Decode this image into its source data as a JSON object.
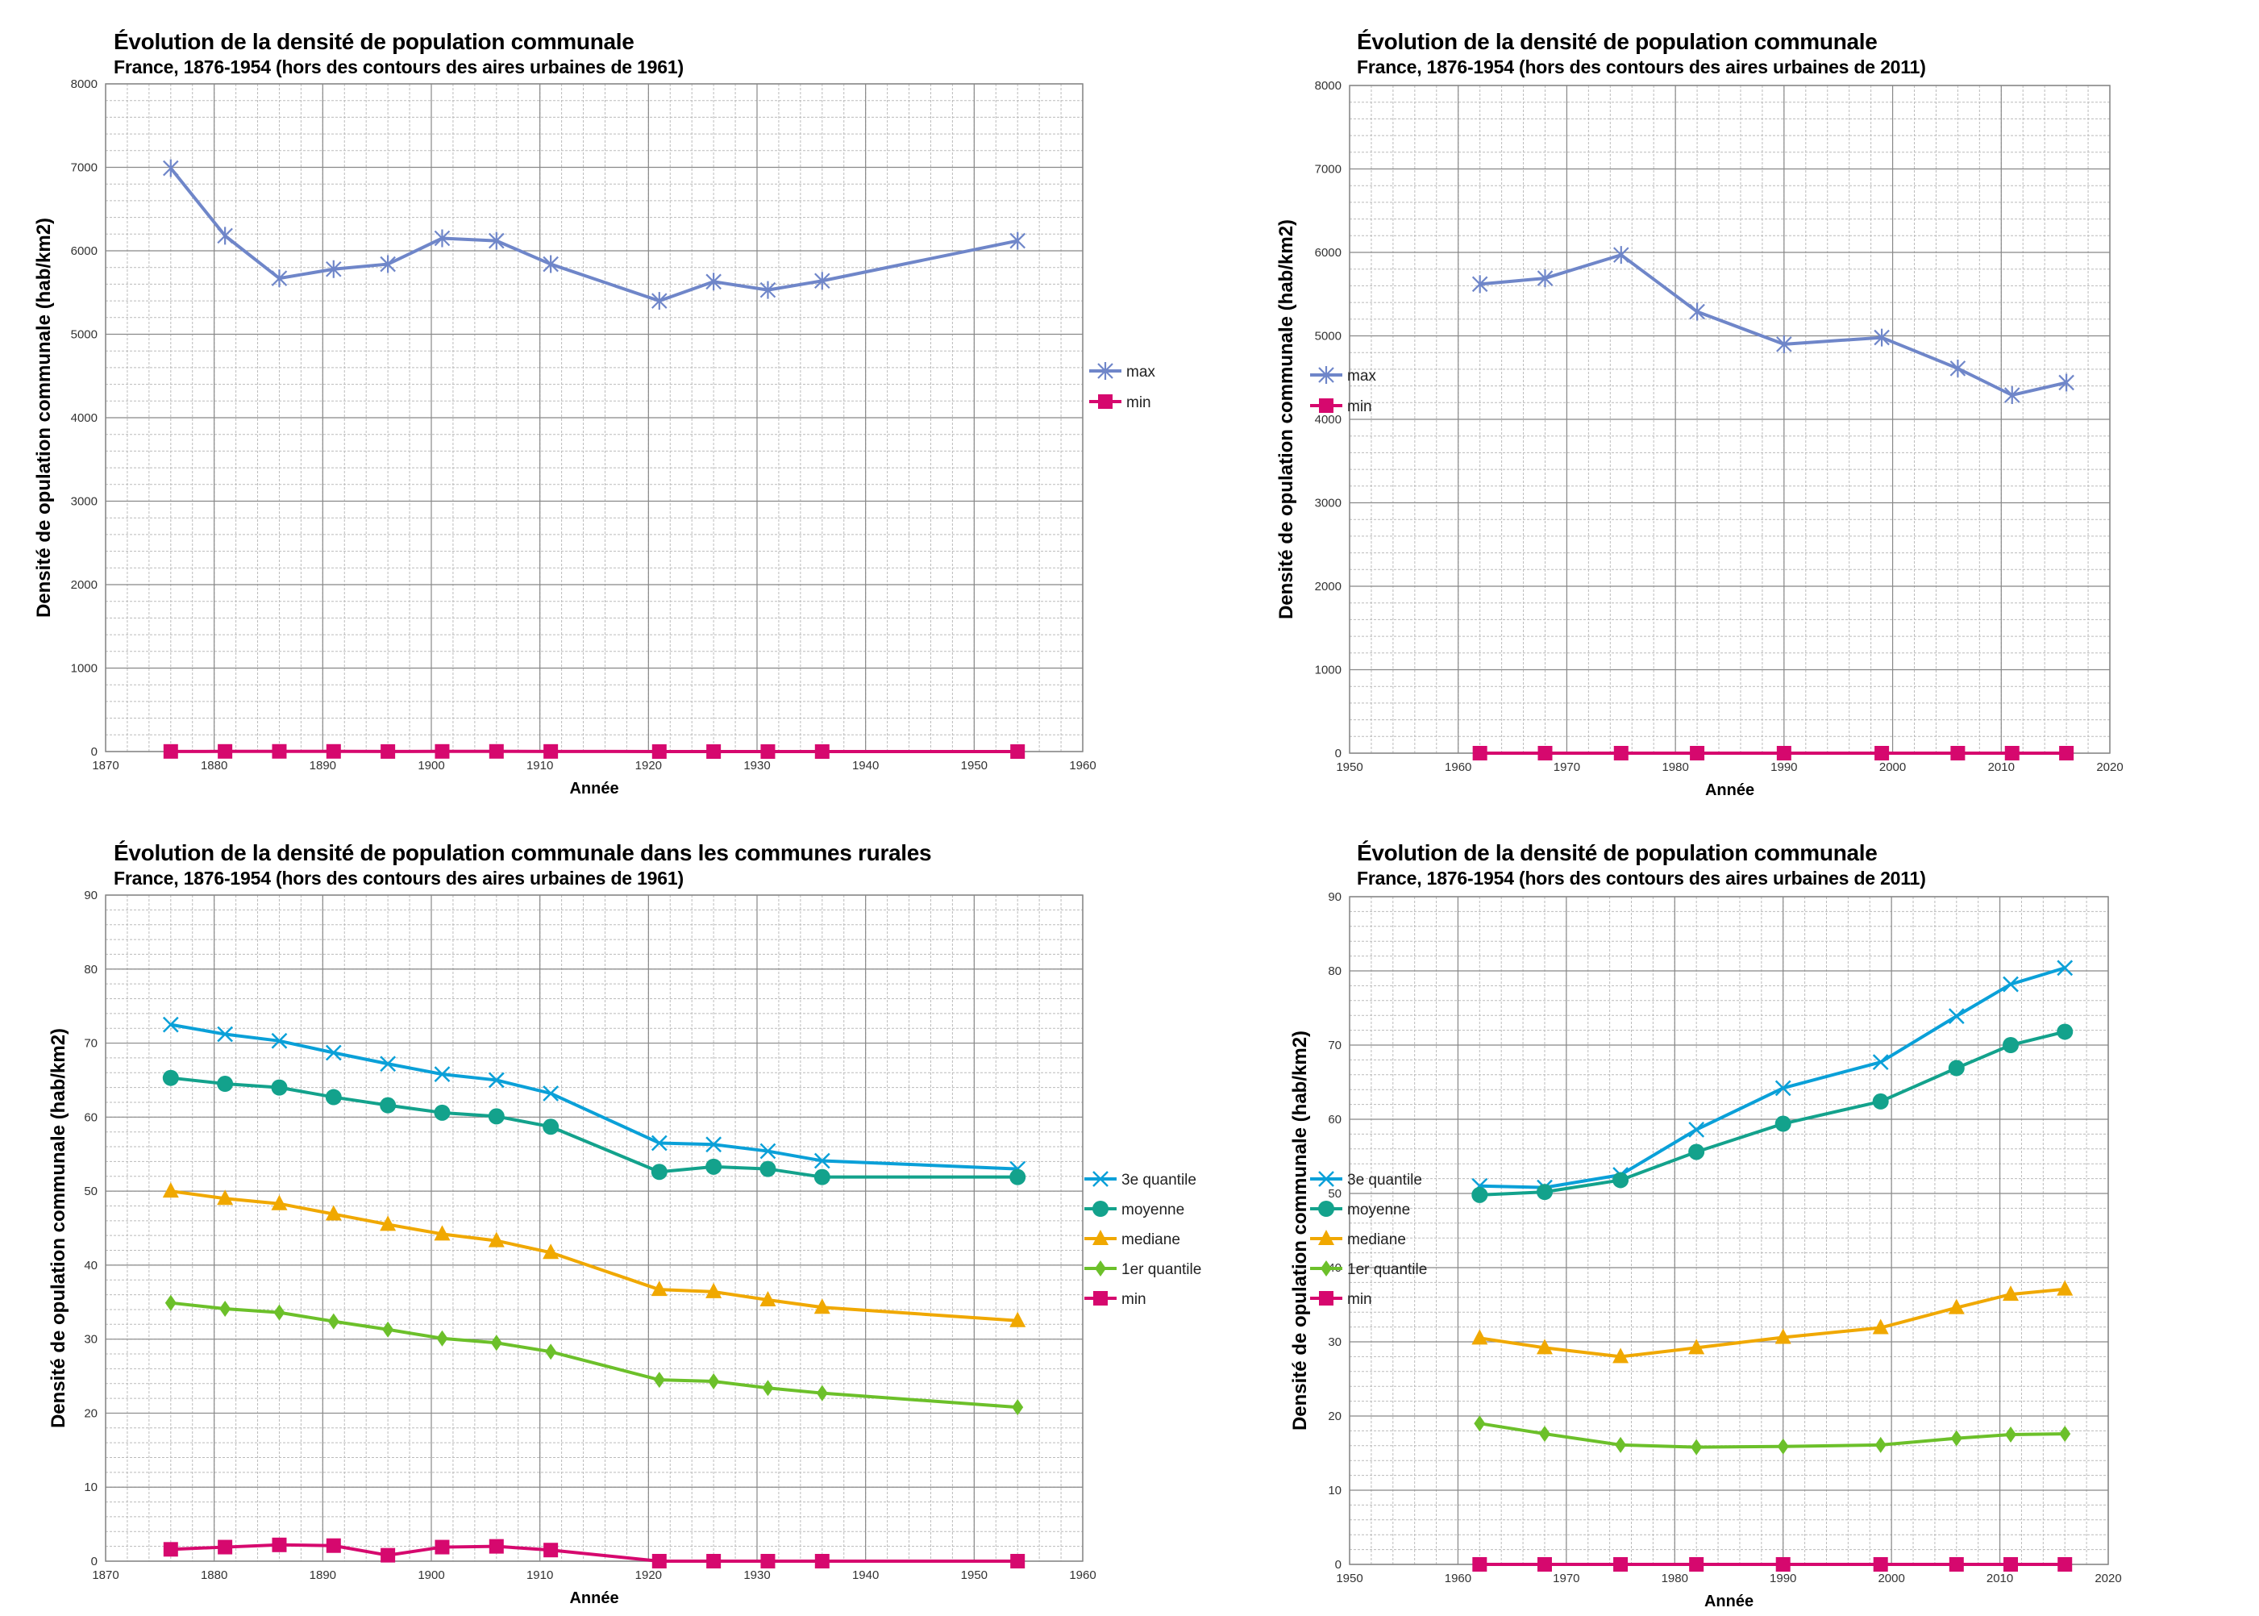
{
  "colors": {
    "max": "#6f86c9",
    "min": "#d6086e",
    "q3": "#0aa0d8",
    "moyenne": "#13a28c",
    "mediane": "#f0a800",
    "q1": "#6cc02a"
  },
  "chart_data": [
    {
      "type": "line",
      "title": "Évolution de la densité de population communale",
      "subtitle": "France, 1876-1954 (hors des contours des aires urbaines de 1961)",
      "xlabel": "Année",
      "ylabel": "Densité de opulation communale (hab/km2)",
      "xlim": [
        1870,
        1960
      ],
      "ylim": [
        0,
        8000
      ],
      "xticks": [
        "1870",
        "1880",
        "1890",
        "1900",
        "1910",
        "1920",
        "1930",
        "1940",
        "1950",
        "1960"
      ],
      "yticks": [
        "0",
        "1000",
        "2000",
        "3000",
        "4000",
        "5000",
        "6000",
        "7000",
        "8000"
      ],
      "grid": true,
      "legend": "right",
      "x": [
        1876,
        1881,
        1886,
        1891,
        1896,
        1901,
        1906,
        1911,
        1921,
        1926,
        1931,
        1936,
        1954
      ],
      "series": [
        {
          "name": "max",
          "key": "max",
          "marker": "asterisk",
          "values": [
            6990,
            6180,
            5670,
            5780,
            5840,
            6150,
            6120,
            5840,
            5400,
            5630,
            5530,
            5640,
            6120
          ]
        },
        {
          "name": "min",
          "key": "min",
          "marker": "square",
          "values": [
            1.6,
            1.9,
            2.2,
            2.1,
            0.8,
            1.9,
            2.0,
            1.5,
            0,
            0,
            0,
            0,
            0
          ]
        }
      ]
    },
    {
      "type": "line",
      "title": "Évolution de la densité de population communale",
      "subtitle": "France, 1876-1954 (hors des contours des aires urbaines de 2011)",
      "xlabel": "Année",
      "ylabel": "Densité de opulation communale (hab/km2)",
      "xlim": [
        1950,
        2020
      ],
      "ylim": [
        0,
        8000
      ],
      "xticks": [
        "1950",
        "1960",
        "1970",
        "1980",
        "1990",
        "2000",
        "2010",
        "2020"
      ],
      "yticks": [
        "0",
        "1000",
        "2000",
        "3000",
        "4000",
        "5000",
        "6000",
        "7000",
        "8000"
      ],
      "grid": true,
      "legend": "right",
      "x": [
        1962,
        1968,
        1975,
        1982,
        1990,
        1999,
        2006,
        2011,
        2016
      ],
      "series": [
        {
          "name": "max",
          "key": "max",
          "marker": "asterisk",
          "values": [
            5620,
            5690,
            5970,
            5290,
            4900,
            4980,
            4610,
            4290,
            4440
          ]
        },
        {
          "name": "min",
          "key": "min",
          "marker": "square",
          "values": [
            0,
            0,
            0,
            0,
            0,
            0,
            0,
            0,
            0
          ]
        }
      ]
    },
    {
      "type": "line",
      "title": "Évolution de la densité de population communale dans les communes rurales",
      "subtitle": "France, 1876-1954 (hors des contours des aires urbaines de 1961)",
      "xlabel": "Année",
      "ylabel": "Densité de opulation communale (hab/km2)",
      "xlim": [
        1870,
        1960
      ],
      "ylim": [
        0,
        90
      ],
      "xticks": [
        "1870",
        "1880",
        "1890",
        "1900",
        "1910",
        "1920",
        "1930",
        "1940",
        "1950",
        "1960"
      ],
      "yticks": [
        "0",
        "10",
        "20",
        "30",
        "40",
        "50",
        "60",
        "70",
        "80",
        "90"
      ],
      "grid": true,
      "legend": "right",
      "x": [
        1876,
        1881,
        1886,
        1891,
        1896,
        1901,
        1906,
        1911,
        1921,
        1926,
        1931,
        1936,
        1954
      ],
      "series": [
        {
          "name": "3e quantile",
          "key": "q3",
          "marker": "x",
          "values": [
            72.5,
            71.2,
            70.3,
            68.7,
            67.2,
            65.8,
            65.0,
            63.2,
            56.5,
            56.3,
            55.4,
            54.1,
            53.0
          ]
        },
        {
          "name": "moyenne",
          "key": "moyenne",
          "marker": "circle",
          "values": [
            65.3,
            64.5,
            64.0,
            62.7,
            61.6,
            60.6,
            60.1,
            58.7,
            52.6,
            53.3,
            53.0,
            51.9,
            51.9
          ]
        },
        {
          "name": "mediane",
          "key": "mediane",
          "marker": "triangle",
          "values": [
            50.0,
            49.0,
            48.3,
            46.9,
            45.5,
            44.2,
            43.3,
            41.7,
            36.7,
            36.4,
            35.3,
            34.3,
            32.5
          ]
        },
        {
          "name": "1er quantile",
          "key": "q1",
          "marker": "diamond",
          "values": [
            34.9,
            34.1,
            33.6,
            32.4,
            31.3,
            30.1,
            29.5,
            28.3,
            24.5,
            24.3,
            23.4,
            22.7,
            20.8
          ]
        },
        {
          "name": "min",
          "key": "min",
          "marker": "square",
          "values": [
            1.6,
            1.9,
            2.2,
            2.1,
            0.8,
            1.9,
            2.0,
            1.5,
            0,
            0,
            0,
            0,
            0
          ]
        }
      ]
    },
    {
      "type": "line",
      "title": "Évolution de la densité de population communale",
      "subtitle": "France, 1876-1954 (hors des contours des aires urbaines de 2011)",
      "xlabel": "Année",
      "ylabel": "Densité de opulation communale (hab/km2)",
      "xlim": [
        1950,
        2020
      ],
      "ylim": [
        0,
        90
      ],
      "xticks": [
        "1950",
        "1960",
        "1970",
        "1980",
        "1990",
        "2000",
        "2010",
        "2020"
      ],
      "yticks": [
        "0",
        "10",
        "20",
        "30",
        "40",
        "50",
        "60",
        "70",
        "80",
        "90"
      ],
      "grid": true,
      "legend": "right",
      "x": [
        1962,
        1968,
        1975,
        1982,
        1990,
        1999,
        2006,
        2011,
        2016
      ],
      "series": [
        {
          "name": "3e quantile",
          "key": "q3",
          "marker": "x",
          "values": [
            51.0,
            50.8,
            52.5,
            58.6,
            64.2,
            67.7,
            73.9,
            78.2,
            80.4
          ]
        },
        {
          "name": "moyenne",
          "key": "moyenne",
          "marker": "circle",
          "values": [
            49.8,
            50.2,
            51.8,
            55.6,
            59.4,
            62.4,
            66.9,
            70.0,
            71.8
          ]
        },
        {
          "name": "mediane",
          "key": "mediane",
          "marker": "triangle",
          "values": [
            30.5,
            29.2,
            28.0,
            29.2,
            30.6,
            31.9,
            34.6,
            36.4,
            37.1
          ]
        },
        {
          "name": "1er quantile",
          "key": "q1",
          "marker": "diamond",
          "values": [
            19.0,
            17.6,
            16.1,
            15.8,
            15.9,
            16.1,
            17.0,
            17.5,
            17.6
          ]
        },
        {
          "name": "min",
          "key": "min",
          "marker": "square",
          "values": [
            0,
            0,
            0,
            0,
            0,
            0,
            0,
            0,
            0
          ]
        }
      ]
    }
  ]
}
